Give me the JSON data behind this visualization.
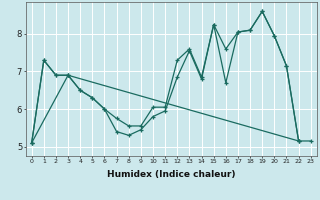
{
  "xlabel": "Humidex (Indice chaleur)",
  "bg_color": "#cce8ec",
  "line_color": "#1a6b60",
  "grid_color": "#ffffff",
  "xlim": [
    -0.5,
    23.5
  ],
  "ylim": [
    4.75,
    8.85
  ],
  "yticks": [
    5,
    6,
    7,
    8
  ],
  "xticks": [
    0,
    1,
    2,
    3,
    4,
    5,
    6,
    7,
    8,
    9,
    10,
    11,
    12,
    13,
    14,
    15,
    16,
    17,
    18,
    19,
    20,
    21,
    22,
    23
  ],
  "line1_x": [
    0,
    1,
    2,
    3,
    4,
    5,
    6,
    7,
    8,
    9,
    10,
    11,
    12,
    13,
    14,
    15,
    16,
    17,
    18,
    19,
    20,
    21,
    22
  ],
  "line1_y": [
    5.1,
    7.3,
    6.9,
    6.9,
    6.5,
    6.3,
    6.0,
    5.4,
    5.3,
    5.45,
    5.8,
    5.95,
    6.85,
    7.55,
    6.8,
    8.25,
    6.7,
    8.05,
    8.1,
    8.6,
    7.95,
    7.15,
    5.15
  ],
  "line2_x": [
    0,
    1,
    2,
    3,
    4,
    5,
    6,
    7,
    8,
    9,
    10,
    11,
    12,
    13,
    14,
    15,
    16,
    17,
    18,
    19,
    20,
    21,
    22
  ],
  "line2_y": [
    5.1,
    7.3,
    6.9,
    6.9,
    6.5,
    6.3,
    6.0,
    5.75,
    5.55,
    5.55,
    6.05,
    6.05,
    7.3,
    7.6,
    6.85,
    8.25,
    7.6,
    8.05,
    8.1,
    8.6,
    7.95,
    7.15,
    5.15
  ],
  "line3_x": [
    0,
    3,
    22,
    23
  ],
  "line3_y": [
    5.1,
    6.9,
    5.15,
    5.15
  ]
}
